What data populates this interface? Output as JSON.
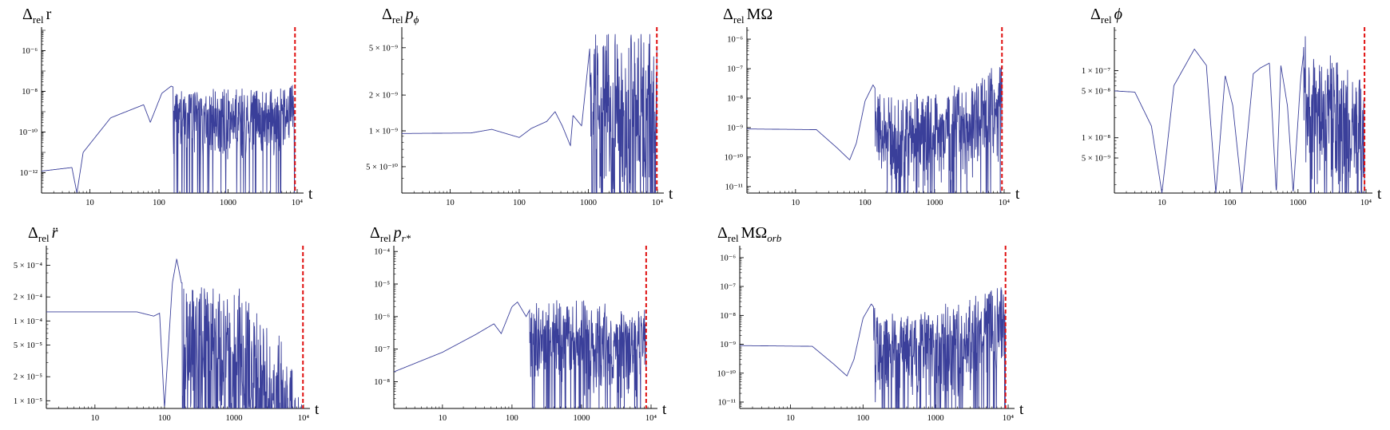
{
  "colors": {
    "series": "#3a3f9a",
    "marker": "#e01010",
    "axis": "#000000",
    "background": "#ffffff"
  },
  "chart_data": [
    {
      "type": "line",
      "title_html": "<tspan>Δ</tspan><tspan font-size='13' dy='5'>rel</tspan><tspan dy='-5'> r</tspan>",
      "title_parts": [
        "Δ",
        "rel",
        "r"
      ],
      "xlabel": "t",
      "xscale": "log",
      "yscale": "log",
      "xlim": [
        2,
        10000
      ],
      "ylim": [
        1e-13,
        1e-05
      ],
      "xticks": [
        "10",
        "100",
        "1000",
        "10⁴"
      ],
      "yticks": [
        {
          "value": 1e-06,
          "label": "10⁻⁶"
        },
        {
          "value": 1e-08,
          "label": "10⁻⁸"
        },
        {
          "value": 1e-10,
          "label": "10⁻¹⁰"
        },
        {
          "value": 1e-12,
          "label": "10⁻¹²"
        }
      ],
      "marker_t": 9300,
      "series": [
        {
          "knots": [
            [
              2,
              1.2e-12
            ],
            [
              5.5,
              1.8e-12
            ],
            [
              6.5,
              1e-13
            ],
            [
              8,
              1e-11
            ],
            [
              20,
              5e-10
            ],
            [
              60,
              2.2e-09
            ],
            [
              75,
              3e-10
            ],
            [
              110,
              8e-09
            ],
            [
              150,
              1.8e-08
            ],
            [
              200,
              1.2e-08
            ],
            [
              400,
              1.1e-08
            ],
            [
              1000,
              1e-08
            ],
            [
              3000,
              1.2e-08
            ],
            [
              9300,
              2.5e-08
            ]
          ],
          "osc_start": 160,
          "osc_depth": 2.8,
          "osc_density": 160,
          "seed": 3
        }
      ]
    },
    {
      "type": "line",
      "title_parts": [
        "Δ",
        "rel",
        "p",
        "ϕ"
      ],
      "xlabel": "t",
      "xscale": "log",
      "yscale": "log",
      "xlim": [
        2,
        10000
      ],
      "ylim": [
        3e-10,
        7e-09
      ],
      "xticks": [
        "10",
        "100",
        "1000",
        "10⁴"
      ],
      "yticks": [
        {
          "value": 5e-09,
          "label": "5 × 10⁻⁹"
        },
        {
          "value": 2e-09,
          "label": "2 × 10⁻⁹"
        },
        {
          "value": 1e-09,
          "label": "1 × 10⁻⁹"
        },
        {
          "value": 5e-10,
          "label": "5 × 10⁻¹⁰"
        }
      ],
      "marker_t": 9800,
      "series": [
        {
          "knots": [
            [
              2,
              9.5e-10
            ],
            [
              20,
              9.6e-10
            ],
            [
              40,
              1.03e-09
            ],
            [
              100,
              8.8e-10
            ],
            [
              150,
              1.05e-09
            ],
            [
              250,
              1.2e-09
            ],
            [
              330,
              1.45e-09
            ],
            [
              420,
              1.1e-09
            ],
            [
              550,
              7.5e-10
            ],
            [
              600,
              1.35e-09
            ],
            [
              800,
              1.1e-09
            ],
            [
              1100,
              6.5e-09
            ],
            [
              9800,
              6.5e-09
            ]
          ],
          "osc_start": 1050,
          "osc_depth": 1.35,
          "osc_density": 230,
          "seed": 11,
          "clip_top": 6.5e-09
        }
      ]
    },
    {
      "type": "line",
      "title_parts": [
        "Δ",
        "rel",
        "MΩ"
      ],
      "xlabel": "t",
      "xscale": "log",
      "yscale": "log",
      "xlim": [
        2,
        10000
      ],
      "ylim": [
        6e-12,
        2e-06
      ],
      "xticks": [
        "10",
        "100",
        "1000",
        "10⁴"
      ],
      "yticks": [
        {
          "value": 1e-06,
          "label": "10⁻⁶"
        },
        {
          "value": 1e-07,
          "label": "10⁻⁷"
        },
        {
          "value": 1e-08,
          "label": "10⁻⁸"
        },
        {
          "value": 1e-09,
          "label": "10⁻⁹"
        },
        {
          "value": 1e-10,
          "label": "10⁻¹⁰"
        },
        {
          "value": 1e-11,
          "label": "10⁻¹¹"
        }
      ],
      "marker_t": 9300,
      "series": [
        {
          "knots": [
            [
              2,
              9e-10
            ],
            [
              20,
              8.5e-10
            ],
            [
              40,
              2e-10
            ],
            [
              60,
              8e-11
            ],
            [
              75,
              3e-10
            ],
            [
              100,
              8e-09
            ],
            [
              130,
              2.8e-08
            ],
            [
              170,
              1e-08
            ],
            [
              400,
              1.2e-08
            ],
            [
              1000,
              1.5e-08
            ],
            [
              3000,
              2.5e-08
            ],
            [
              9300,
              1.5e-07
            ]
          ],
          "osc_start": 140,
          "osc_depth": 2.6,
          "osc_density": 160,
          "seed": 5
        }
      ]
    },
    {
      "type": "line",
      "title_parts": [
        "Δ",
        "rel",
        "ϕ"
      ],
      "xlabel": "t",
      "xscale": "log",
      "yscale": "log",
      "xlim": [
        2,
        10000
      ],
      "ylim": [
        1.5e-09,
        4e-07
      ],
      "xticks": [
        "10",
        "100",
        "1000",
        "10⁴"
      ],
      "yticks": [
        {
          "value": 1e-07,
          "label": "1 × 10⁻⁷"
        },
        {
          "value": 5e-08,
          "label": "5 × 10⁻⁸"
        },
        {
          "value": 1e-08,
          "label": "1 × 10⁻⁸"
        },
        {
          "value": 5e-09,
          "label": "5 × 10⁻⁹"
        }
      ],
      "marker_t": 9500,
      "series": [
        {
          "knots": [
            [
              2,
              5e-08
            ],
            [
              4,
              4.8e-08
            ],
            [
              7,
              1.5e-08
            ],
            [
              10,
              1.5e-09
            ],
            [
              15,
              6e-08
            ],
            [
              30,
              2.1e-07
            ],
            [
              45,
              1.2e-07
            ],
            [
              62,
              1.5e-09
            ],
            [
              85,
              8.5e-08
            ],
            [
              110,
              3e-08
            ],
            [
              150,
              1.5e-09
            ],
            [
              220,
              9e-08
            ],
            [
              280,
              1.1e-07
            ],
            [
              380,
              1.3e-07
            ],
            [
              480,
              1.5e-09
            ],
            [
              560,
              1.2e-07
            ],
            [
              700,
              3e-08
            ],
            [
              850,
              1.5e-09
            ],
            [
              1100,
              8e-08
            ],
            [
              1300,
              3.5e-07
            ],
            [
              1500,
              8e-08
            ],
            [
              2000,
              2e-07
            ],
            [
              4000,
              1.2e-07
            ],
            [
              9500,
              7e-08
            ]
          ],
          "osc_start": 1200,
          "osc_depth": 1.6,
          "osc_density": 140,
          "seed": 17
        }
      ]
    },
    {
      "type": "line",
      "title_parts": [
        "Δ",
        "rel",
        "r̈"
      ],
      "xlabel": "t",
      "xscale": "log",
      "yscale": "log",
      "xlim": [
        2,
        10000
      ],
      "ylim": [
        8e-06,
        0.0008
      ],
      "xticks": [
        "10",
        "100",
        "1000",
        "10⁴"
      ],
      "yticks": [
        {
          "value": 0.0005,
          "label": "5 × 10⁻⁴"
        },
        {
          "value": 0.0002,
          "label": "2 × 10⁻⁴"
        },
        {
          "value": 0.0001,
          "label": "1 × 10⁻⁴"
        },
        {
          "value": 5e-05,
          "label": "5 × 10⁻⁵"
        },
        {
          "value": 2e-05,
          "label": "2 × 10⁻⁵"
        },
        {
          "value": 1e-05,
          "label": "1 × 10⁻⁵"
        }
      ],
      "marker_t": 9800,
      "series": [
        {
          "knots": [
            [
              2,
              0.00013
            ],
            [
              40,
              0.00013
            ],
            [
              70,
              0.000115
            ],
            [
              85,
              0.000125
            ],
            [
              100,
              8e-06
            ],
            [
              130,
              0.0003
            ],
            [
              150,
              0.0006
            ],
            [
              175,
              0.0003
            ],
            [
              250,
              0.0003
            ],
            [
              800,
              0.00025
            ],
            [
              2000,
              0.00015
            ],
            [
              5000,
              5e-05
            ],
            [
              9000,
              1e-05
            ]
          ],
          "osc_start": 180,
          "osc_depth": 1.7,
          "osc_density": 150,
          "seed": 23
        }
      ]
    },
    {
      "type": "line",
      "title_parts": [
        "Δ",
        "rel",
        "p",
        "r*"
      ],
      "xlabel": "t",
      "xscale": "log",
      "yscale": "log",
      "xlim": [
        2,
        10000
      ],
      "ylim": [
        1.5e-09,
        0.00012
      ],
      "xticks": [
        "10",
        "100",
        "1000",
        "10⁴"
      ],
      "yticks": [
        {
          "value": 0.0001,
          "label": "10⁻⁴"
        },
        {
          "value": 1e-05,
          "label": "10⁻⁵"
        },
        {
          "value": 1e-06,
          "label": "10⁻⁶"
        },
        {
          "value": 1e-07,
          "label": "10⁻⁷"
        },
        {
          "value": 1e-08,
          "label": "10⁻⁸"
        }
      ],
      "marker_t": 8500,
      "series": [
        {
          "knots": [
            [
              2,
              2e-08
            ],
            [
              10,
              8e-08
            ],
            [
              30,
              2.8e-07
            ],
            [
              55,
              6e-07
            ],
            [
              70,
              3e-07
            ],
            [
              100,
              2e-06
            ],
            [
              120,
              2.8e-06
            ],
            [
              160,
              1e-06
            ],
            [
              200,
              2.5e-06
            ],
            [
              1000,
              2.5e-06
            ],
            [
              3000,
              1.5e-06
            ],
            [
              6000,
              1e-06
            ],
            [
              8500,
              5e-06
            ]
          ],
          "osc_start": 180,
          "osc_depth": 2.3,
          "osc_density": 150,
          "seed": 29
        }
      ]
    },
    {
      "type": "line",
      "title_parts": [
        "Δ",
        "rel",
        "MΩ",
        "orb"
      ],
      "xlabel": "t",
      "xscale": "log",
      "yscale": "log",
      "xlim": [
        2,
        10000
      ],
      "ylim": [
        6e-12,
        2e-06
      ],
      "xticks": [
        "10",
        "100",
        "1000",
        "10⁴"
      ],
      "yticks": [
        {
          "value": 1e-06,
          "label": "10⁻⁶"
        },
        {
          "value": 1e-07,
          "label": "10⁻⁷"
        },
        {
          "value": 1e-08,
          "label": "10⁻⁸"
        },
        {
          "value": 1e-09,
          "label": "10⁻⁹"
        },
        {
          "value": 1e-10,
          "label": "10⁻¹⁰"
        },
        {
          "value": 1e-11,
          "label": "10⁻¹¹"
        }
      ],
      "marker_t": 9200,
      "series": [
        {
          "knots": [
            [
              2,
              9e-10
            ],
            [
              20,
              8.5e-10
            ],
            [
              40,
              2e-10
            ],
            [
              60,
              8e-11
            ],
            [
              75,
              3e-10
            ],
            [
              100,
              8e-09
            ],
            [
              130,
              2.5e-08
            ],
            [
              170,
              1e-08
            ],
            [
              400,
              1.2e-08
            ],
            [
              1000,
              1.5e-08
            ],
            [
              3000,
              2.5e-08
            ],
            [
              9200,
              2e-07
            ]
          ],
          "osc_start": 140,
          "osc_depth": 2.6,
          "osc_density": 160,
          "seed": 7
        }
      ]
    }
  ]
}
